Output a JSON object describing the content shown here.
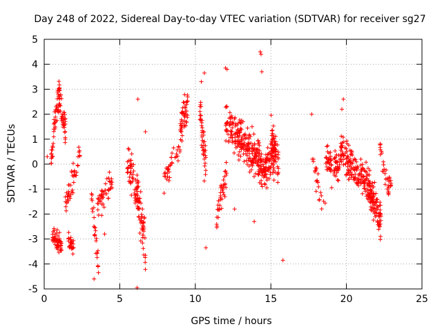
{
  "chart_data": {
    "type": "scatter",
    "title": "Day 248 of 2022, Sidereal Day-to-day VTEC variation (SDTVAR) for receiver sg27",
    "xlabel": "GPS time / hours",
    "ylabel": "SDTVAR / TECUs",
    "xlim": [
      0,
      25
    ],
    "ylim": [
      -5,
      5
    ],
    "xticks": [
      0,
      5,
      10,
      15,
      20,
      25
    ],
    "yticks": [
      -5,
      -4,
      -3,
      -2,
      -1,
      0,
      1,
      2,
      3,
      4,
      5
    ],
    "grid": true,
    "marker": "+",
    "color": "#ff0000",
    "clusters": [
      {
        "x_start": 0.45,
        "x_end": 1.4,
        "center": [
          0,
          1.5,
          2.8,
          2.2,
          1.5
        ],
        "spread": 0.55,
        "n": 90
      },
      {
        "x_start": 0.55,
        "x_end": 1.15,
        "center": [
          -2.8,
          -3.1,
          -3.3
        ],
        "spread": 0.35,
        "n": 60
      },
      {
        "x_start": 1.4,
        "x_end": 2.4,
        "center": [
          -1.5,
          -1,
          -0.2,
          0.6
        ],
        "spread": 0.45,
        "n": 45
      },
      {
        "x_start": 1.6,
        "x_end": 2.0,
        "center": [
          -3.1,
          -3.4
        ],
        "spread": 0.3,
        "n": 25
      },
      {
        "x_start": 3.1,
        "x_end": 3.6,
        "center": [
          -1.2,
          -2.6,
          -4.2
        ],
        "spread": 0.45,
        "n": 25
      },
      {
        "x_start": 3.5,
        "x_end": 4.5,
        "center": [
          -1.8,
          -1.2,
          -0.8
        ],
        "spread": 0.5,
        "n": 45
      },
      {
        "x_start": 5.5,
        "x_end": 6.7,
        "center": [
          0.3,
          -0.6,
          -1.8,
          -3.2
        ],
        "spread": 0.85,
        "n": 110
      },
      {
        "x_start": 7.9,
        "x_end": 9.0,
        "center": [
          -0.6,
          0.1,
          0.6
        ],
        "spread": 0.4,
        "n": 35
      },
      {
        "x_start": 9.0,
        "x_end": 9.5,
        "center": [
          1.4,
          2.0,
          2.3
        ],
        "spread": 0.5,
        "n": 50
      },
      {
        "x_start": 10.3,
        "x_end": 10.7,
        "center": [
          2.5,
          1.0,
          -0.2
        ],
        "spread": 0.7,
        "n": 45
      },
      {
        "x_start": 11.4,
        "x_end": 12.1,
        "center": [
          -2.0,
          -1.2,
          -0.3
        ],
        "spread": 0.45,
        "n": 40
      },
      {
        "x_start": 12.0,
        "x_end": 14.0,
        "center": [
          1.7,
          1.2,
          0.7,
          0.3
        ],
        "spread": 0.7,
        "n": 190
      },
      {
        "x_start": 14.0,
        "x_end": 15.4,
        "center": [
          0.6,
          -0.3,
          0.1,
          0.4
        ],
        "spread": 0.6,
        "n": 150
      },
      {
        "x_start": 15.0,
        "x_end": 15.5,
        "center": [
          1.5,
          0.5,
          0.0
        ],
        "spread": 0.55,
        "n": 40
      },
      {
        "x_start": 17.6,
        "x_end": 18.6,
        "center": [
          1.0,
          -0.8,
          -1.6
        ],
        "spread": 0.5,
        "n": 22
      },
      {
        "x_start": 18.6,
        "x_end": 19.6,
        "center": [
          0.4,
          -0.2,
          0.0
        ],
        "spread": 0.55,
        "n": 70
      },
      {
        "x_start": 19.6,
        "x_end": 21.3,
        "center": [
          0.6,
          0.0,
          -0.4,
          -0.6
        ],
        "spread": 0.55,
        "n": 140
      },
      {
        "x_start": 21.3,
        "x_end": 22.3,
        "center": [
          -0.6,
          -1.2,
          -1.6,
          -2.4
        ],
        "spread": 0.6,
        "n": 120
      },
      {
        "x_start": 22.2,
        "x_end": 23.0,
        "center": [
          0.8,
          -0.6,
          -0.9
        ],
        "spread": 0.45,
        "n": 35
      }
    ],
    "outliers": [
      [
        0.2,
        0.3
      ],
      [
        6.2,
        2.6
      ],
      [
        6.15,
        -4.95
      ],
      [
        14.3,
        4.5
      ],
      [
        14.35,
        4.4
      ],
      [
        14.4,
        3.7
      ],
      [
        15.8,
        -3.85
      ],
      [
        10.7,
        -3.35
      ],
      [
        10.6,
        3.65
      ],
      [
        12.0,
        3.85
      ],
      [
        12.1,
        3.8
      ],
      [
        13.9,
        -2.3
      ],
      [
        10.4,
        3.3
      ],
      [
        17.7,
        2.0
      ],
      [
        19.8,
        2.6
      ],
      [
        19.7,
        2.2
      ],
      [
        3.3,
        -4.6
      ],
      [
        12.6,
        -1.8
      ],
      [
        6.7,
        1.3
      ],
      [
        4.0,
        -2.8
      ]
    ]
  }
}
